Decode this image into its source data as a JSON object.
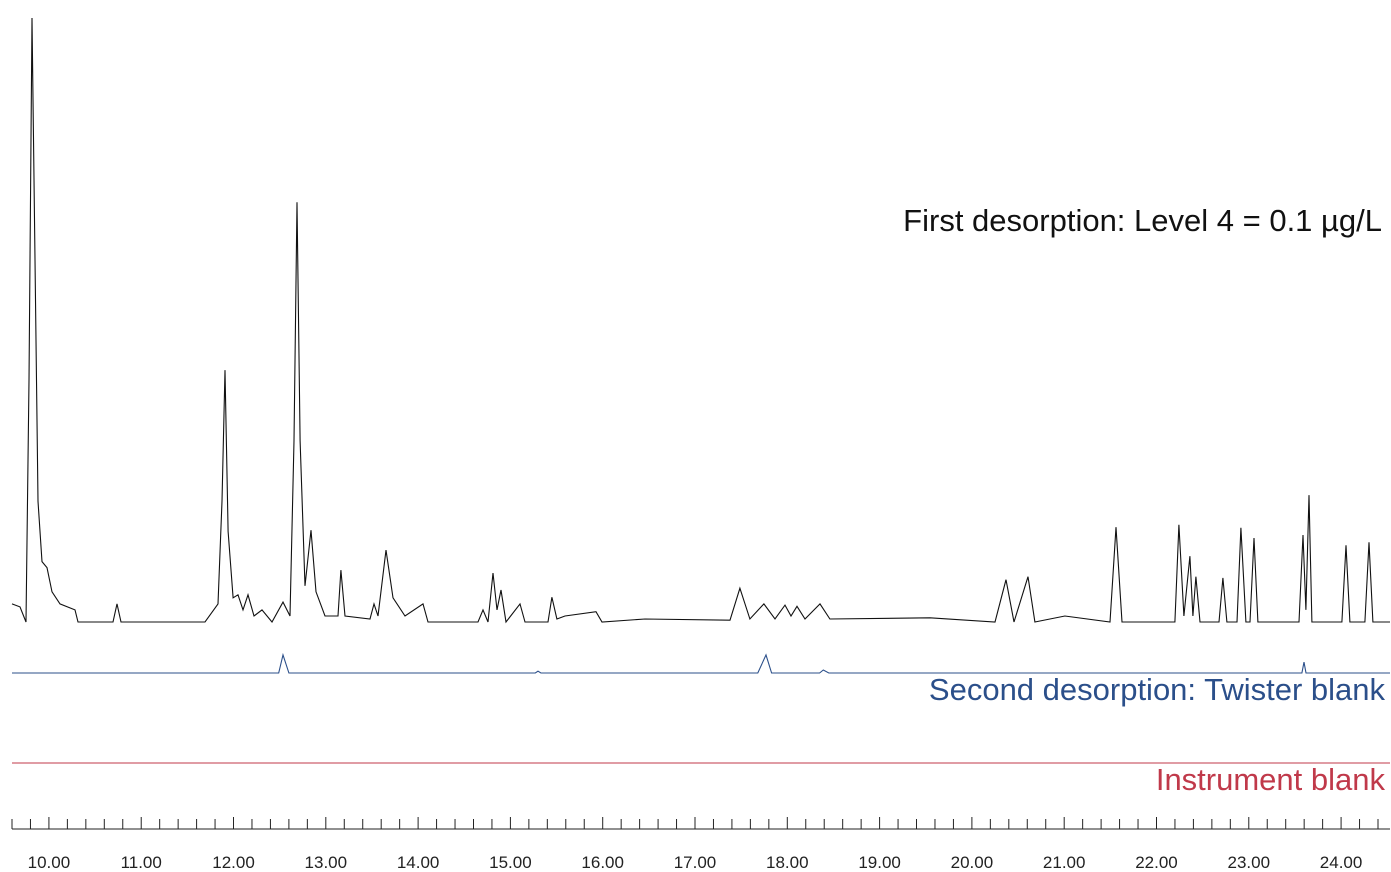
{
  "chart_data": {
    "type": "line",
    "ylim": [
      0,
      100
    ],
    "xlim": [
      9.6,
      24.53
    ],
    "xticks": [
      {
        "value": 10,
        "label": "10.00"
      },
      {
        "value": 11,
        "label": "11.00"
      },
      {
        "value": 12,
        "label": "12.00"
      },
      {
        "value": 13,
        "label": "13.00"
      },
      {
        "value": 14,
        "label": "14.00"
      },
      {
        "value": 15,
        "label": "15.00"
      },
      {
        "value": 16,
        "label": "16.00"
      },
      {
        "value": 17,
        "label": "17.00"
      },
      {
        "value": 18,
        "label": "18.00"
      },
      {
        "value": 19,
        "label": "19.00"
      },
      {
        "value": 20,
        "label": "20.00"
      },
      {
        "value": 21,
        "label": "21.00"
      },
      {
        "value": 22,
        "label": "22.00"
      },
      {
        "value": 23,
        "label": "23.00"
      },
      {
        "value": 24,
        "label": "24.00"
      }
    ],
    "minor_xticks": [
      9.6,
      9.8,
      10.2,
      10.4,
      10.6,
      10.8,
      11.2,
      11.4,
      11.6,
      11.8,
      12.2,
      12.4,
      12.6,
      12.8,
      13.2,
      13.4,
      13.6,
      13.8,
      14.2,
      14.4,
      14.6,
      14.8,
      15.2,
      15.4,
      15.6,
      15.8,
      16.2,
      16.4,
      16.6,
      16.8,
      17.2,
      17.4,
      17.6,
      17.8,
      18.2,
      18.4,
      18.6,
      18.8,
      19.2,
      19.4,
      19.6,
      19.8,
      20.2,
      20.4,
      20.6,
      20.8,
      21.2,
      21.4,
      21.6,
      21.8,
      22.2,
      22.4,
      22.6,
      22.8,
      23.2,
      23.4,
      23.6,
      23.8,
      24.2,
      24.4
    ],
    "series": [
      {
        "name": "First desorption: Level 4 = 0.1 µg/L",
        "color": "#111111",
        "x": [
          9.6,
          9.687,
          9.752,
          9.784,
          9.817,
          9.849,
          9.882,
          9.925,
          9.979,
          10.033,
          10.12,
          10.283,
          10.315,
          10.694,
          10.738,
          10.781,
          11.691,
          11.832,
          11.875,
          11.908,
          11.941,
          11.995,
          12.049,
          12.103,
          12.157,
          12.222,
          12.309,
          12.417,
          12.536,
          12.612,
          12.655,
          12.688,
          12.721,
          12.775,
          12.84,
          12.894,
          12.991,
          13.132,
          13.164,
          13.208,
          13.479,
          13.522,
          13.565,
          13.652,
          13.728,
          13.858,
          14.053,
          14.107,
          14.649,
          14.703,
          14.757,
          14.811,
          14.855,
          14.898,
          14.952,
          15.104,
          15.158,
          15.407,
          15.45,
          15.504,
          15.591,
          15.927,
          15.992,
          16.458,
          17.379,
          17.487,
          17.595,
          17.747,
          17.867,
          17.975,
          18.04,
          18.105,
          18.192,
          18.354,
          18.462,
          19.546,
          20.25,
          20.369,
          20.456,
          20.608,
          20.683,
          21.008,
          21.496,
          21.561,
          21.626,
          22.2,
          22.243,
          22.297,
          22.362,
          22.395,
          22.427,
          22.471,
          22.677,
          22.72,
          22.763,
          22.872,
          22.915,
          22.969,
          23.013,
          23.056,
          23.099,
          23.544,
          23.587,
          23.619,
          23.652,
          23.684,
          24.009,
          24.053,
          24.096,
          24.258,
          24.302,
          24.345,
          24.53
        ],
        "values": [
          3,
          2.5,
          0,
          40,
          100,
          60,
          20,
          10,
          9,
          5,
          3,
          2,
          0,
          0,
          3,
          0,
          0,
          3,
          20,
          41.7,
          15,
          4,
          4.5,
          2,
          4.5,
          1,
          2,
          0,
          3.3,
          1,
          30,
          69.5,
          30,
          6,
          15.2,
          5,
          1,
          1,
          8.6,
          1,
          0.5,
          3,
          1,
          11.9,
          4,
          1,
          3,
          0,
          0,
          2,
          0,
          8.1,
          2,
          5.3,
          0,
          3,
          0,
          0,
          4.1,
          0.5,
          1,
          1.7,
          0,
          0.5,
          0.3,
          5.6,
          0.5,
          3,
          0.5,
          2.8,
          1,
          2.6,
          0.5,
          3,
          0.5,
          0.7,
          0,
          7,
          0,
          7.5,
          0,
          1,
          0,
          15.7,
          0,
          0,
          16.1,
          1,
          10.9,
          1,
          7.5,
          0,
          0,
          7.3,
          0,
          0,
          15.6,
          0,
          0,
          13.9,
          0,
          0,
          14.4,
          2,
          21,
          0,
          0,
          12.7,
          0,
          0,
          13.2,
          0,
          0
        ]
      },
      {
        "name": "Second desorption: Twister blank",
        "color": "#2b4f8a",
        "x": [
          9.6,
          10.315,
          12.49,
          12.536,
          12.6,
          15.27,
          15.299,
          15.33,
          17.68,
          17.769,
          17.83,
          18.35,
          18.39,
          18.45,
          23.576,
          23.598,
          23.62,
          24.53
        ],
        "values": [
          0,
          0,
          0,
          3,
          0,
          0,
          0.3,
          0,
          0,
          3,
          0,
          0,
          0.5,
          0,
          0,
          1.8,
          0,
          0
        ]
      },
      {
        "name": "Instrument blank",
        "color": "#c0394a",
        "x": [
          9.6,
          24.53
        ],
        "values": [
          0,
          0
        ]
      }
    ]
  }
}
